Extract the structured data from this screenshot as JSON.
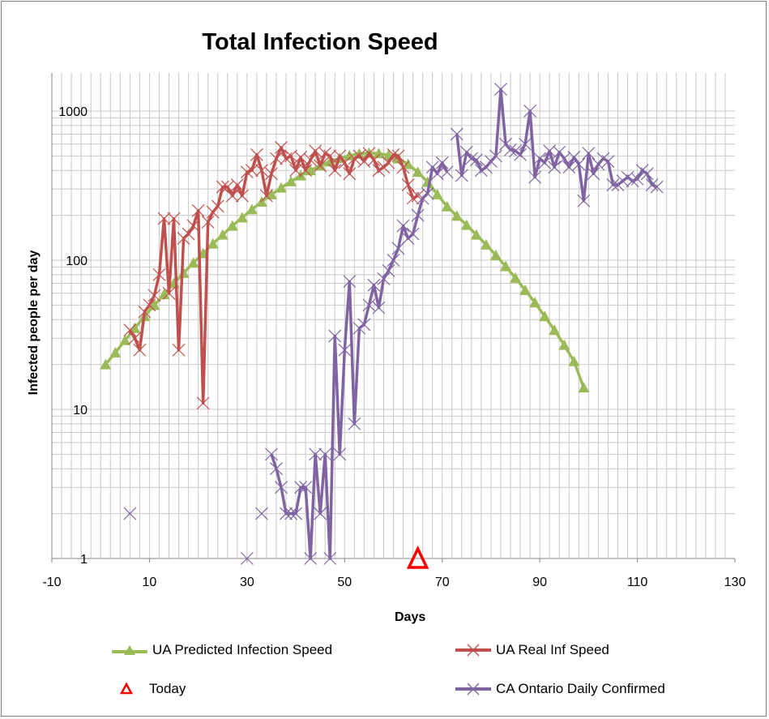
{
  "chart_data": {
    "type": "line",
    "title": "Total Infection Speed",
    "xlabel": "Days",
    "ylabel": "Infected people per day",
    "xlim": [
      -10,
      130
    ],
    "ylim": [
      1,
      1800
    ],
    "y_scale": "log",
    "x_ticks": [
      "-10",
      "10",
      "30",
      "50",
      "70",
      "90",
      "110",
      "130"
    ],
    "y_ticks": [
      {
        "value": 1,
        "label": "1"
      },
      {
        "value": 10,
        "label": "10"
      },
      {
        "value": 100,
        "label": "100"
      },
      {
        "value": 1000,
        "label": "1000"
      }
    ],
    "grid": true,
    "legend_position": "bottom",
    "series": [
      {
        "name": "UA Predicted Infection Speed",
        "color": "#9bbb59",
        "marker": "triangle",
        "x": [
          1,
          3,
          5,
          7,
          9,
          11,
          13,
          15,
          17,
          19,
          21,
          23,
          25,
          27,
          29,
          31,
          33,
          35,
          37,
          39,
          41,
          43,
          45,
          47,
          49,
          51,
          53,
          55,
          57,
          59,
          61,
          63,
          65,
          67,
          69,
          71,
          73,
          75,
          77,
          79,
          81,
          83,
          85,
          87,
          89,
          91,
          93,
          95,
          97,
          99
        ],
        "y": [
          20,
          24,
          29,
          35,
          42,
          50,
          59,
          70,
          82,
          96,
          111,
          129,
          148,
          170,
          193,
          219,
          246,
          276,
          306,
          337,
          369,
          400,
          430,
          458,
          483,
          503,
          517,
          523,
          520,
          506,
          480,
          440,
          390,
          334,
          276,
          229,
          198,
          172,
          148,
          127,
          108,
          91,
          76,
          63,
          52,
          42,
          34,
          27,
          21,
          14
        ]
      },
      {
        "name": "UA Real Inf Speed",
        "color": "#c0504d",
        "marker": "x",
        "x": [
          6,
          7,
          8,
          9,
          10,
          11,
          12,
          13,
          14,
          15,
          16,
          17,
          18,
          19,
          20,
          21,
          22,
          23,
          24,
          25,
          26,
          27,
          28,
          29,
          30,
          31,
          32,
          33,
          34,
          35,
          36,
          37,
          38,
          39,
          40,
          41,
          42,
          43,
          44,
          45,
          46,
          47,
          48,
          49,
          50,
          51,
          52,
          53,
          54,
          55,
          56,
          57,
          58,
          59,
          60,
          61,
          62,
          63,
          64,
          65
        ],
        "y": [
          34,
          30,
          25,
          45,
          50,
          58,
          80,
          190,
          60,
          190,
          25,
          140,
          150,
          170,
          215,
          11,
          180,
          210,
          230,
          310,
          310,
          270,
          320,
          270,
          390,
          400,
          510,
          400,
          270,
          380,
          480,
          570,
          480,
          500,
          400,
          490,
          400,
          470,
          540,
          430,
          520,
          500,
          400,
          500,
          450,
          380,
          480,
          500,
          460,
          520,
          470,
          400,
          420,
          450,
          510,
          500,
          420,
          320,
          260,
          270
        ]
      },
      {
        "name": "CA Ontario Daily Confirmed",
        "color": "#8064a2",
        "marker": "x",
        "x": [
          6,
          30,
          33,
          35,
          36,
          37,
          38,
          39,
          40,
          41,
          42,
          43,
          44,
          45,
          46,
          47,
          48,
          49,
          50,
          51,
          52,
          53,
          54,
          55,
          56,
          57,
          58,
          59,
          60,
          61,
          62,
          63,
          64,
          65,
          66,
          67,
          68,
          69,
          70,
          71,
          73,
          74,
          75,
          76,
          77,
          78,
          79,
          80,
          81,
          82,
          83,
          84,
          85,
          86,
          87,
          88,
          89,
          90,
          91,
          92,
          93,
          94,
          95,
          96,
          97,
          98,
          99,
          100,
          101,
          102,
          103,
          104,
          105,
          106,
          107,
          108,
          109,
          110,
          111,
          112,
          113,
          114
        ],
        "y": [
          2,
          1,
          2,
          5,
          4,
          3,
          2,
          2,
          2,
          3,
          3,
          1,
          5,
          2,
          5,
          1,
          31,
          5,
          25,
          72,
          8,
          35,
          37,
          50,
          68,
          48,
          75,
          85,
          100,
          120,
          170,
          140,
          150,
          200,
          260,
          280,
          420,
          380,
          450,
          390,
          700,
          370,
          530,
          480,
          470,
          400,
          420,
          460,
          500,
          1400,
          600,
          550,
          540,
          510,
          600,
          1000,
          360,
          480,
          450,
          540,
          420,
          530,
          480,
          420,
          490,
          440,
          250,
          520,
          380,
          440,
          480,
          460,
          320,
          320,
          340,
          360,
          340,
          350,
          400,
          380,
          320,
          310
        ]
      },
      {
        "name": "Today",
        "color": "#ff0000",
        "marker": "open-triangle",
        "x": [
          65
        ],
        "y": [
          1
        ]
      }
    ]
  },
  "legend": {
    "predicted": "UA Predicted Infection Speed",
    "real": "UA Real Inf Speed",
    "today": "Today",
    "ontario": "CA Ontario Daily Confirmed"
  }
}
